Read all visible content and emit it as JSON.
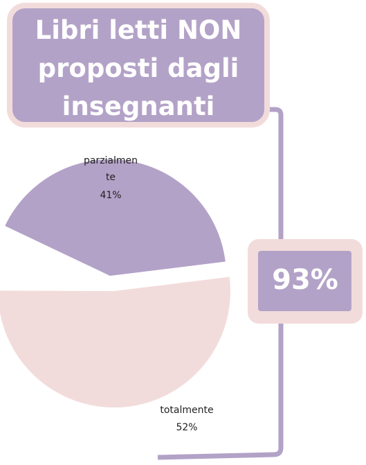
{
  "chart_data": {
    "type": "pie",
    "title": "Libri letti NON proposti dagli insegnanti",
    "categories": [
      "parzialmente",
      "totalmente"
    ],
    "values": [
      41,
      52
    ],
    "value_labels": [
      "41%",
      "52%"
    ],
    "colors": [
      "#b3a2c7",
      "#f2dcdb"
    ],
    "total": 93,
    "total_label": "93%"
  }
}
